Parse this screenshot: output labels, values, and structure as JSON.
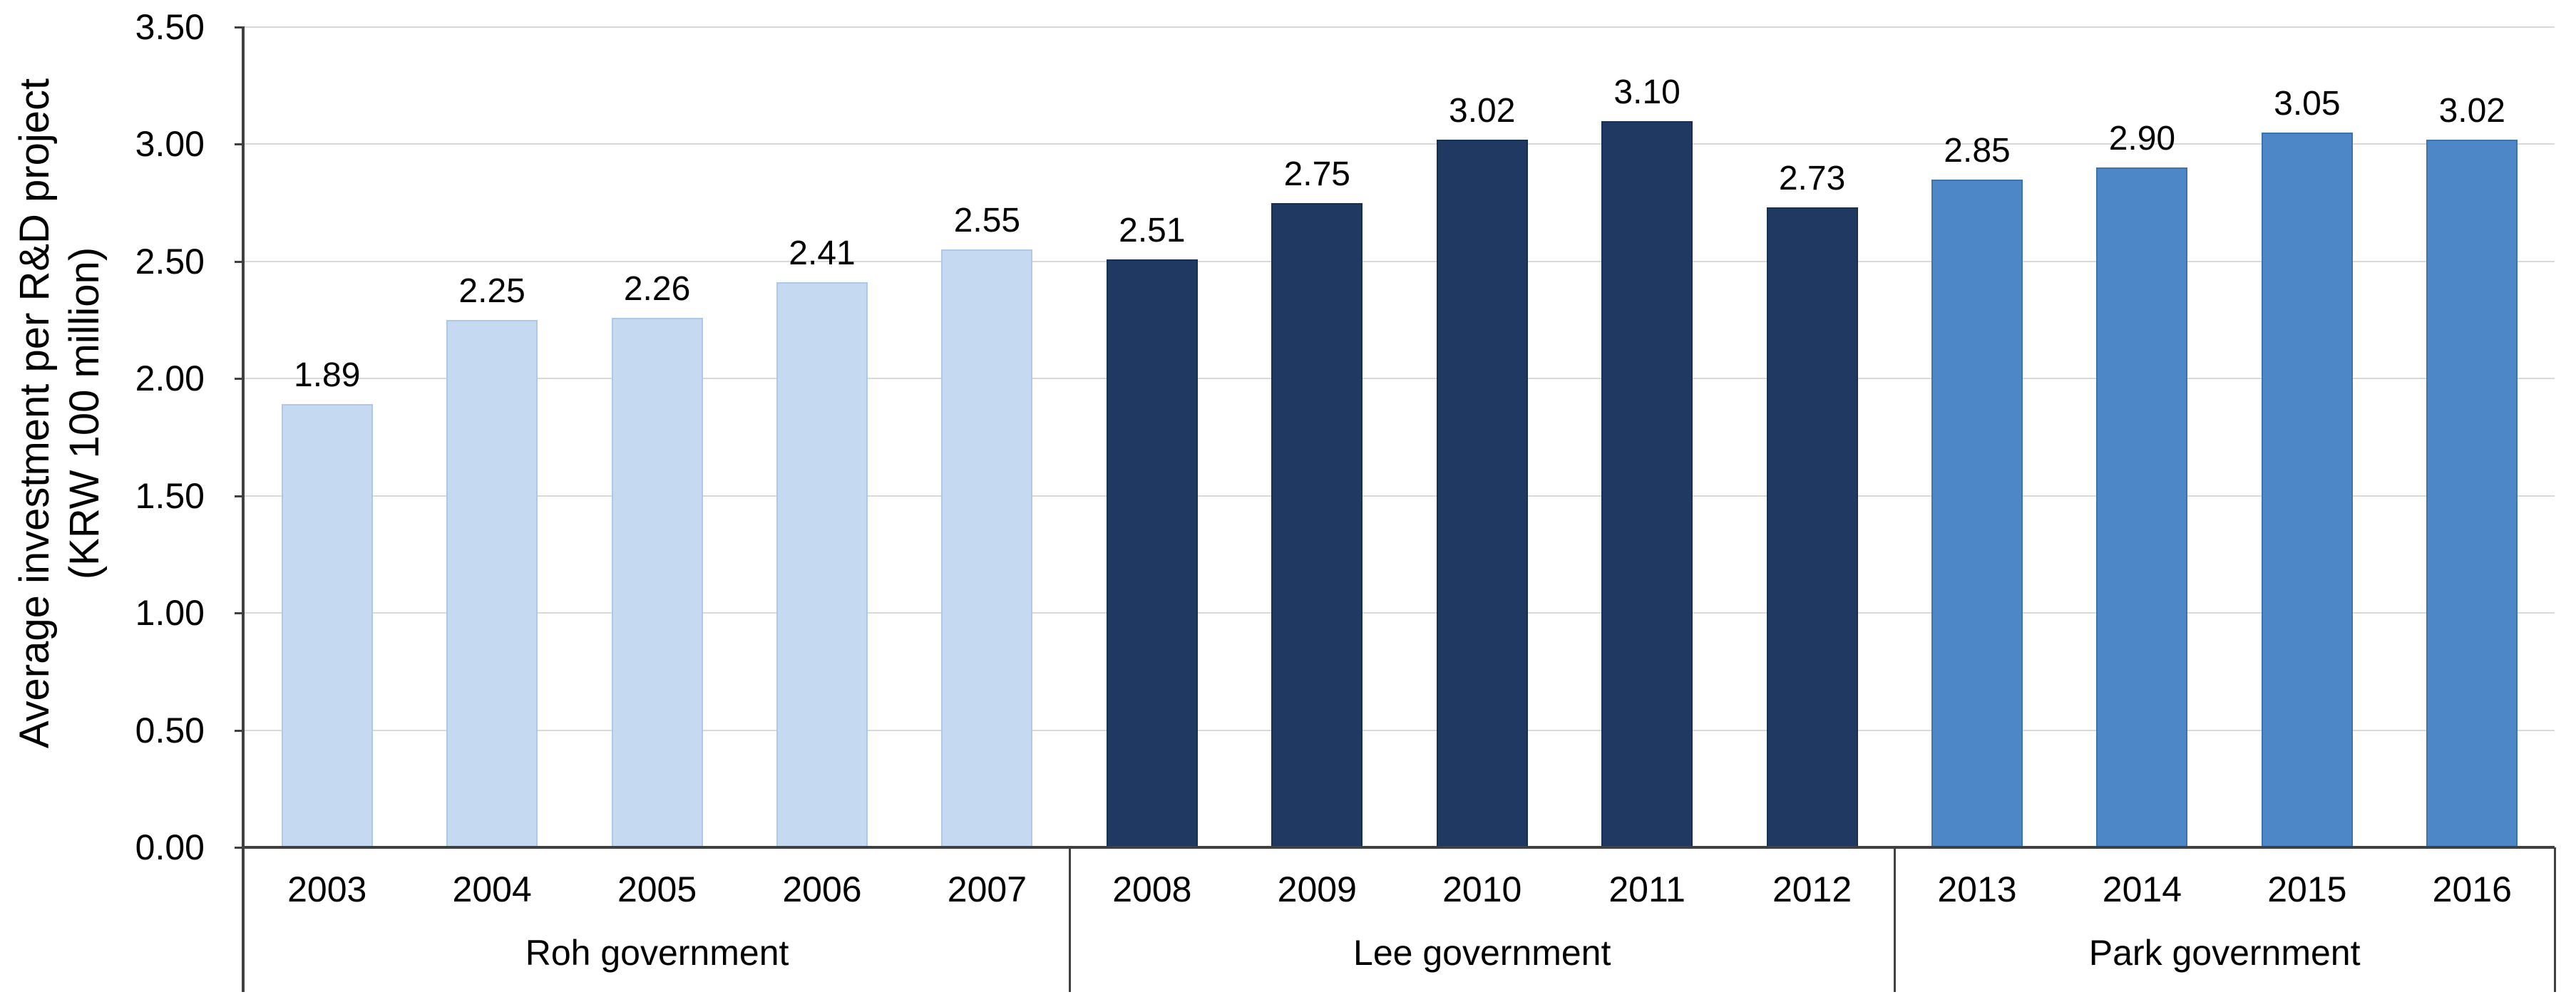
{
  "chart_data": {
    "type": "bar",
    "title": "",
    "ylabel": "Average investment per R&D project (KRW 100 million)",
    "ylabel_lines": [
      "Average investment per R&D project",
      "(KRW 100 million)"
    ],
    "categories": [
      "2003",
      "2004",
      "2005",
      "2006",
      "2007",
      "2008",
      "2009",
      "2010",
      "2011",
      "2012",
      "2013",
      "2014",
      "2015",
      "2016"
    ],
    "values": [
      1.89,
      2.25,
      2.26,
      2.41,
      2.55,
      2.51,
      2.75,
      3.02,
      3.1,
      2.73,
      2.85,
      2.9,
      3.05,
      3.02
    ],
    "value_labels": [
      "1.89",
      "2.25",
      "2.26",
      "2.41",
      "2.55",
      "2.51",
      "2.75",
      "3.02",
      "3.10",
      "2.73",
      "2.85",
      "2.90",
      "3.05",
      "3.02"
    ],
    "groups": [
      {
        "label": "Roh government",
        "start": 0,
        "count": 5,
        "color": "#c5d9f1",
        "border_color": "#adc8ea"
      },
      {
        "label": "Lee government",
        "start": 5,
        "count": 5,
        "color": "#1f3962",
        "border_color": "#172f52"
      },
      {
        "label": "Park government",
        "start": 10,
        "count": 4,
        "color": "#4d87c7",
        "border_color": "#3e74ae"
      }
    ],
    "ylim": [
      0,
      3.5
    ],
    "ytick_step": 0.5,
    "ytick_labels": [
      "0.00",
      "0.50",
      "1.00",
      "1.50",
      "2.00",
      "2.50",
      "3.00",
      "3.50"
    ],
    "grid": true,
    "legend": "none",
    "style": {
      "gridline_color": "#d9d9d9",
      "axis_color": "#404040",
      "text_color": "#000000",
      "background_color": "#ffffff"
    }
  }
}
